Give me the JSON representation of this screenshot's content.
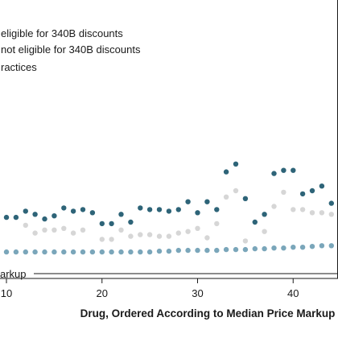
{
  "chart_data": {
    "type": "scatter",
    "title": "",
    "xlabel": "Drug, Ordered According to Median Price Markup",
    "ylabel": "",
    "xlim": [
      8,
      51
    ],
    "ylim": [
      0,
      12
    ],
    "x_ticks": [
      "10",
      "20",
      "30",
      "40"
    ],
    "x_tick_values": [
      10,
      20,
      30,
      40
    ],
    "grid": false,
    "legend_placement": "top-left",
    "reference_line": {
      "label": "arkup",
      "y": 0.65
    },
    "colors": {
      "eligible": "#2e6478",
      "not_eligible": "#d6d6d6",
      "practices": "#7aa6ba",
      "axis": "#1a1a1a"
    },
    "series": [
      {
        "name": "eligible for 340B discounts",
        "color": "#2e6478",
        "x": [
          8,
          9,
          10,
          11,
          12,
          13,
          14,
          15,
          16,
          17,
          18,
          19,
          20,
          21,
          22,
          23,
          24,
          25,
          26,
          27,
          28,
          29,
          30,
          31,
          32,
          33,
          34,
          35,
          36,
          37,
          38,
          39,
          40,
          41,
          42,
          43,
          44,
          45
        ],
        "y": [
          3.0,
          2.5,
          2.3,
          2.3,
          2.7,
          2.5,
          2.2,
          2.4,
          2.9,
          2.7,
          2.8,
          2.6,
          1.9,
          1.9,
          2.5,
          2.0,
          2.9,
          2.8,
          2.8,
          2.7,
          2.8,
          3.3,
          2.6,
          3.3,
          2.8,
          5.2,
          5.7,
          3.5,
          2.0,
          2.5,
          5.1,
          5.3,
          5.3,
          3.8,
          4.0,
          4.3,
          3.2,
          3.0
        ]
      },
      {
        "name": "not eligible for 340B discounts",
        "color": "#d6d6d6",
        "x": [
          9,
          12,
          13,
          14,
          15,
          16,
          17,
          18,
          20,
          21,
          22,
          23,
          24,
          25,
          26,
          27,
          28,
          29,
          30,
          31,
          32,
          33,
          34,
          35,
          37,
          38,
          39,
          40,
          41,
          42,
          43,
          44,
          45
        ],
        "y": [
          1.0,
          1.8,
          1.3,
          1.5,
          1.5,
          1.6,
          1.3,
          1.5,
          0.9,
          0.9,
          1.5,
          1.1,
          1.2,
          1.2,
          1.1,
          1.1,
          1.3,
          1.4,
          1.6,
          1.0,
          1.9,
          3.6,
          4.0,
          0.8,
          1.4,
          3.0,
          3.9,
          2.8,
          2.8,
          2.6,
          2.6,
          2.5,
          2.5
        ]
      },
      {
        "name": "ractices",
        "color": "#7aa6ba",
        "x": [
          8,
          9,
          10,
          11,
          12,
          13,
          14,
          15,
          16,
          17,
          18,
          19,
          20,
          21,
          22,
          23,
          24,
          25,
          26,
          27,
          28,
          29,
          30,
          31,
          32,
          33,
          34,
          35,
          36,
          37,
          38,
          39,
          40,
          41,
          42,
          43,
          44,
          45,
          46,
          47,
          48,
          49,
          50
        ],
        "y": [
          0.1,
          0.1,
          0.1,
          0.1,
          0.1,
          0.1,
          0.1,
          0.1,
          0.1,
          0.1,
          0.1,
          0.1,
          0.1,
          0.1,
          0.1,
          0.1,
          0.1,
          0.1,
          0.15,
          0.15,
          0.2,
          0.2,
          0.2,
          0.2,
          0.2,
          0.25,
          0.25,
          0.25,
          0.3,
          0.3,
          0.35,
          0.35,
          0.4,
          0.4,
          0.45,
          0.5,
          0.5,
          0.55,
          0.55,
          0.55,
          0.6,
          0.6,
          0.6
        ]
      }
    ]
  }
}
